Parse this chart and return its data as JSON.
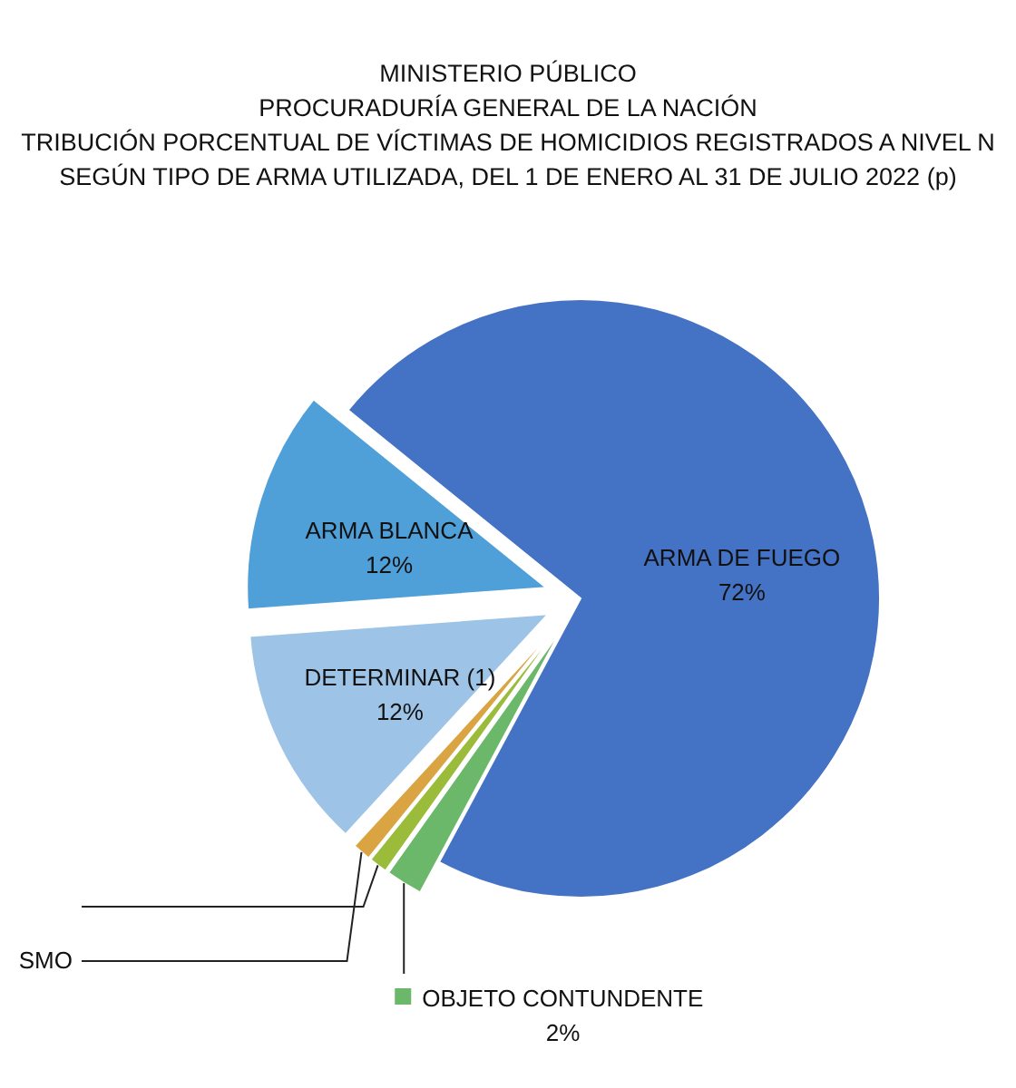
{
  "chart_data": {
    "type": "pie",
    "title": "MINISTERIO PÚBLICO\nPROCURADURÍA GENERAL DE LA NACIÓN\nTRIBUCIÓN PORCENTUAL DE VÍCTIMAS DE HOMICIDIOS REGISTRADOS A NIVEL N\nSEGÚN TIPO DE ARMA UTILIZADA, DEL 1 DE ENERO AL 31 DE JULIO 2022 (p)",
    "categories": [
      "ARMA DE FUEGO",
      "OBJETO CONTUNDENTE",
      null,
      "SMO",
      "DETERMINAR (1)",
      "ARMA BLANCA"
    ],
    "values": [
      72,
      2,
      1,
      1,
      12,
      12
    ],
    "value_labels": [
      "72%",
      "2%",
      null,
      null,
      "12%",
      "12%"
    ],
    "colors": [
      "#4472c4",
      "#6bb86b",
      "#9bbb3b",
      "#d9a441",
      "#9dc3e6",
      "#4f9fd8"
    ]
  }
}
